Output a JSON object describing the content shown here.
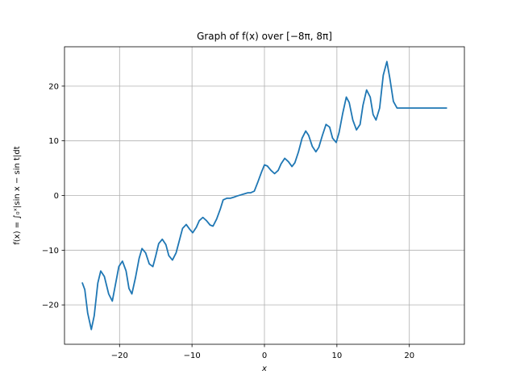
{
  "chart_data": {
    "type": "line",
    "title": "Graph of f(x) over [−8π, 8π]",
    "xlabel": "x",
    "ylabel": "f(x) = ∫₀ˣ|sin x − sin t|dt",
    "xlim": [
      -27.6,
      27.6
    ],
    "ylim": [
      -27.2,
      27.2
    ],
    "xticks": [
      -20,
      -10,
      0,
      10,
      20
    ],
    "xtick_labels": [
      "−20",
      "−10",
      "0",
      "10",
      "20"
    ],
    "yticks": [
      -20,
      -10,
      0,
      10,
      20
    ],
    "ytick_labels": [
      "−20",
      "−10",
      "0",
      "10",
      "20"
    ],
    "grid": true,
    "series": [
      {
        "color": "#1f77b4",
        "x": [
          -25.13,
          -24.8,
          -24.4,
          -23.9,
          -23.5,
          -23.0,
          -22.6,
          -22.1,
          -21.5,
          -21.0,
          -20.6,
          -20.1,
          -19.6,
          -19.1,
          -18.7,
          -18.3,
          -17.8,
          -17.3,
          -16.9,
          -16.4,
          -15.9,
          -15.4,
          -15.0,
          -14.6,
          -14.1,
          -13.6,
          -13.2,
          -12.7,
          -12.2,
          -11.7,
          -11.3,
          -10.8,
          -10.3,
          -9.9,
          -9.4,
          -9.0,
          -8.5,
          -8.0,
          -7.5,
          -7.1,
          -6.6,
          -6.1,
          -5.7,
          -5.2,
          -4.7,
          -4.2,
          -3.8,
          -3.3,
          -2.8,
          -2.3,
          -1.9,
          -1.4,
          -0.9,
          -0.4,
          0.0,
          0.4,
          0.9,
          1.4,
          1.9,
          2.3,
          2.8,
          3.3,
          3.8,
          4.2,
          4.7,
          5.2,
          5.7,
          6.1,
          6.6,
          7.1,
          7.5,
          8.0,
          8.5,
          9.0,
          9.4,
          9.9,
          10.3,
          10.8,
          11.3,
          11.7,
          12.2,
          12.7,
          13.2,
          13.6,
          14.1,
          14.6,
          15.0,
          15.4,
          15.9,
          16.4,
          16.9,
          17.3,
          17.8,
          18.3,
          18.7,
          19.1,
          19.6,
          20.1,
          20.6,
          21.0,
          21.5,
          22.1,
          22.6,
          23.0,
          23.5,
          23.9,
          24.4,
          24.8,
          25.13
        ],
        "y": [
          -16.0,
          -17.2,
          -21.5,
          -24.5,
          -22.0,
          -16.0,
          -13.8,
          -14.8,
          -18.0,
          -19.3,
          -16.5,
          -13.0,
          -12.0,
          -13.8,
          -17.0,
          -18.0,
          -15.0,
          -11.5,
          -9.7,
          -10.5,
          -12.5,
          -13.0,
          -11.0,
          -8.8,
          -8.0,
          -9.0,
          -11.0,
          -11.8,
          -10.5,
          -8.0,
          -6.0,
          -5.3,
          -6.2,
          -6.8,
          -5.8,
          -4.6,
          -4.0,
          -4.6,
          -5.4,
          -5.6,
          -4.3,
          -2.5,
          -0.8,
          -0.5,
          -0.5,
          -0.3,
          -0.1,
          0.1,
          0.3,
          0.5,
          0.5,
          0.8,
          2.5,
          4.3,
          5.6,
          5.4,
          4.6,
          4.0,
          4.6,
          5.8,
          6.8,
          6.2,
          5.3,
          6.0,
          8.0,
          10.5,
          11.8,
          11.0,
          9.0,
          8.0,
          8.8,
          11.0,
          13.0,
          12.5,
          10.5,
          9.7,
          11.5,
          15.0,
          18.0,
          17.0,
          13.8,
          12.0,
          13.0,
          16.5,
          19.3,
          18.0,
          14.8,
          13.8,
          16.0,
          22.0,
          24.5,
          21.5,
          17.2,
          16.0,
          16.0,
          16.0,
          16.0,
          16.0,
          16.0,
          16.0,
          16.0,
          16.0,
          16.0,
          16.0,
          16.0,
          16.0,
          16.0,
          16.0,
          16.0
        ]
      }
    ]
  }
}
